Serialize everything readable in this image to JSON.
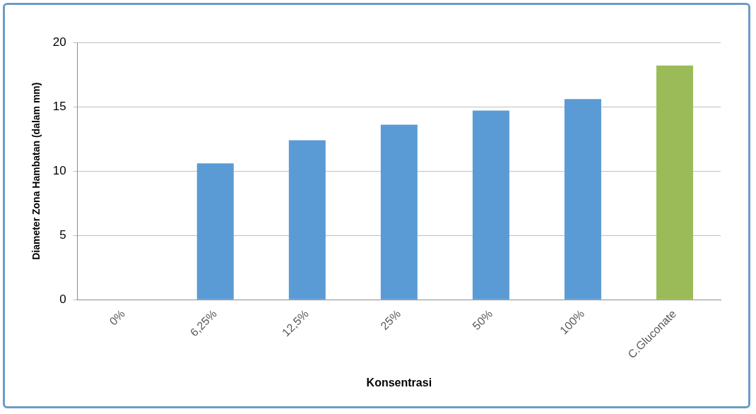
{
  "chart_data": {
    "type": "bar",
    "xlabel": "Konsentrasi",
    "ylabel": "Diameter Zona Hambatan (dalam mm)",
    "categories": [
      "0%",
      "6,25%",
      "12,5%",
      "25%",
      "50%",
      "100%",
      "C.Gluconate"
    ],
    "values": [
      0,
      10.6,
      12.4,
      13.6,
      14.7,
      15.6,
      18.2
    ],
    "colors": [
      "#5b9bd5",
      "#5b9bd5",
      "#5b9bd5",
      "#5b9bd5",
      "#5b9bd5",
      "#5b9bd5",
      "#9bbb59"
    ],
    "ylim": [
      0,
      20
    ],
    "yticks": [
      0,
      5,
      10,
      15,
      20
    ],
    "grid": "y",
    "legend": false
  }
}
